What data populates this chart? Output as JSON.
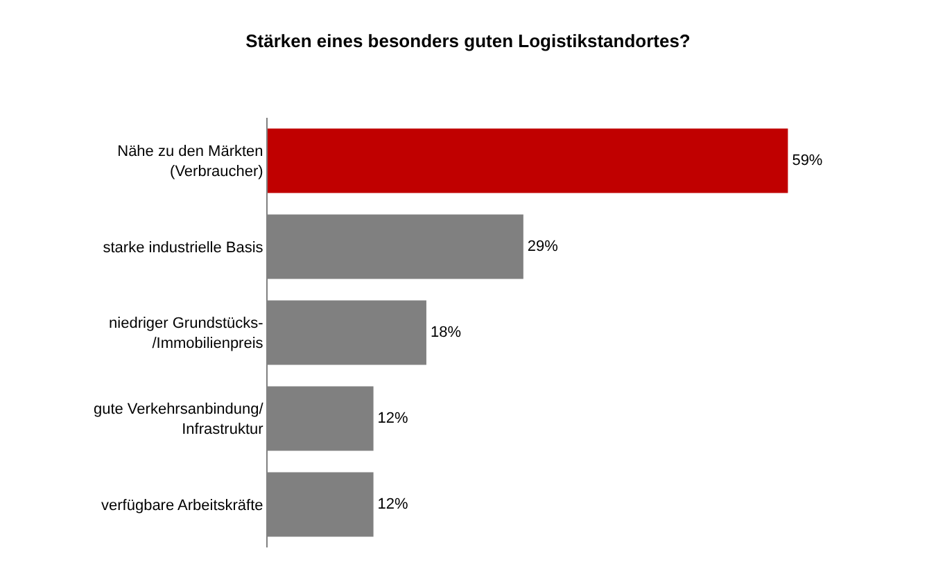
{
  "chart_data": {
    "type": "bar",
    "orientation": "horizontal",
    "title": "Stärken eines besonders guten Logistikstandortes?",
    "categories": [
      "Nähe zu den Märkten\n(Verbraucher)",
      "starke industrielle Basis",
      "niedriger Grundstücks-\n/Immobilienpreis",
      "gute Verkehrsanbindung/\nInfrastruktur",
      "verfügbare Arbeitskräfte"
    ],
    "values": [
      59,
      29,
      18,
      12,
      12
    ],
    "colors": [
      "#c00000",
      "#808080",
      "#808080",
      "#808080",
      "#808080"
    ],
    "value_labels": [
      "59%",
      "29%",
      "18%",
      "12%",
      "12%"
    ]
  }
}
